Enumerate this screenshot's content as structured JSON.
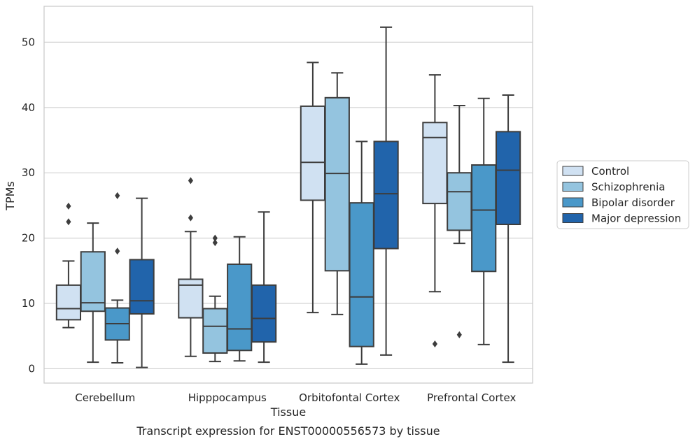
{
  "chart_data": {
    "type": "box",
    "title": "",
    "caption": "Transcript expression for ENST00000556573 by tissue",
    "xlabel": "Tissue",
    "ylabel": "TPMs",
    "ylim": [
      -2.2,
      55.5
    ],
    "yticks": [
      0,
      10,
      20,
      30,
      40,
      50
    ],
    "grid": true,
    "legend_position": "right-outside",
    "categories": [
      "Cerebellum",
      "Hipppocampus",
      "Orbitofontal Cortex",
      "Prefrontal Cortex"
    ],
    "series": [
      {
        "name": "Control",
        "color": "#d0e1f2",
        "boxes": [
          {
            "whisker_low": 6.3,
            "q1": 7.5,
            "median": 9.2,
            "q3": 12.8,
            "whisker_high": 16.5,
            "outliers": [
              22.5,
              24.9
            ]
          },
          {
            "whisker_low": 1.9,
            "q1": 7.8,
            "median": 12.8,
            "q3": 13.7,
            "whisker_high": 21.0,
            "outliers": [
              23.1,
              28.8
            ]
          },
          {
            "whisker_low": 8.6,
            "q1": 25.8,
            "median": 31.6,
            "q3": 40.2,
            "whisker_high": 46.9,
            "outliers": []
          },
          {
            "whisker_low": 11.8,
            "q1": 25.3,
            "median": 35.4,
            "q3": 37.7,
            "whisker_high": 45.0,
            "outliers": [
              3.8
            ]
          }
        ]
      },
      {
        "name": "Schizophrenia",
        "color": "#94c4df",
        "boxes": [
          {
            "whisker_low": 1.0,
            "q1": 8.8,
            "median": 10.1,
            "q3": 17.9,
            "whisker_high": 22.3,
            "outliers": []
          },
          {
            "whisker_low": 1.1,
            "q1": 2.4,
            "median": 6.5,
            "q3": 9.2,
            "whisker_high": 11.1,
            "outliers": [
              19.3,
              20.0
            ]
          },
          {
            "whisker_low": 8.3,
            "q1": 15.0,
            "median": 29.9,
            "q3": 41.5,
            "whisker_high": 45.3,
            "outliers": []
          },
          {
            "whisker_low": 19.2,
            "q1": 21.2,
            "median": 27.1,
            "q3": 30.0,
            "whisker_high": 40.3,
            "outliers": [
              5.2
            ]
          }
        ]
      },
      {
        "name": "Bipolar disorder",
        "color": "#4a98c9",
        "boxes": [
          {
            "whisker_low": 0.9,
            "q1": 4.4,
            "median": 6.9,
            "q3": 9.3,
            "whisker_high": 10.5,
            "outliers": [
              18.0,
              26.5
            ]
          },
          {
            "whisker_low": 1.2,
            "q1": 2.8,
            "median": 6.1,
            "q3": 16.0,
            "whisker_high": 20.2,
            "outliers": []
          },
          {
            "whisker_low": 0.7,
            "q1": 3.4,
            "median": 11.0,
            "q3": 25.4,
            "whisker_high": 34.8,
            "outliers": []
          },
          {
            "whisker_low": 3.7,
            "q1": 14.9,
            "median": 24.3,
            "q3": 31.2,
            "whisker_high": 41.4,
            "outliers": []
          }
        ]
      },
      {
        "name": "Major depression",
        "color": "#2164ab",
        "boxes": [
          {
            "whisker_low": 0.2,
            "q1": 8.4,
            "median": 10.4,
            "q3": 16.7,
            "whisker_high": 26.1,
            "outliers": []
          },
          {
            "whisker_low": 1.0,
            "q1": 4.1,
            "median": 7.7,
            "q3": 12.8,
            "whisker_high": 24.0,
            "outliers": []
          },
          {
            "whisker_low": 2.1,
            "q1": 18.4,
            "median": 26.8,
            "q3": 34.8,
            "whisker_high": 52.3,
            "outliers": []
          },
          {
            "whisker_low": 1.0,
            "q1": 22.1,
            "median": 30.4,
            "q3": 36.3,
            "whisker_high": 41.9,
            "outliers": []
          }
        ]
      }
    ]
  }
}
